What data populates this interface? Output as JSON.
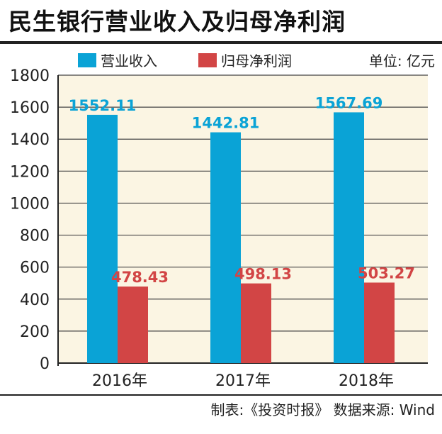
{
  "header": {
    "title": "民生银行营业收入及归母净利润"
  },
  "legend": {
    "unit": "单位: 亿元"
  },
  "colors": {
    "revenue": "#0aa3d6",
    "profit": "#d24545",
    "plot_bg": "#fbf5e3",
    "grid": "#444444"
  },
  "chart_data": {
    "type": "bar",
    "title": "民生银行营业收入及归母净利润",
    "categories": [
      "2016年",
      "2017年",
      "2018年"
    ],
    "series": [
      {
        "name": "营业收入",
        "values": [
          1552.11,
          1442.81,
          1567.69
        ],
        "labels": [
          "1552.11",
          "1442.81",
          "1567.69"
        ]
      },
      {
        "name": "归母净利润",
        "values": [
          478.43,
          498.13,
          503.27
        ],
        "labels": [
          "478.43",
          "498.13",
          "503.27"
        ]
      }
    ],
    "ylim": [
      0,
      1800
    ],
    "yticks": [
      "0",
      "200",
      "400",
      "600",
      "800",
      "1000",
      "1200",
      "1400",
      "1600",
      "1800"
    ],
    "grid": true,
    "legend_position": "top-left"
  },
  "footer": {
    "source": "制表:《投资时报》 数据来源: Wind"
  }
}
